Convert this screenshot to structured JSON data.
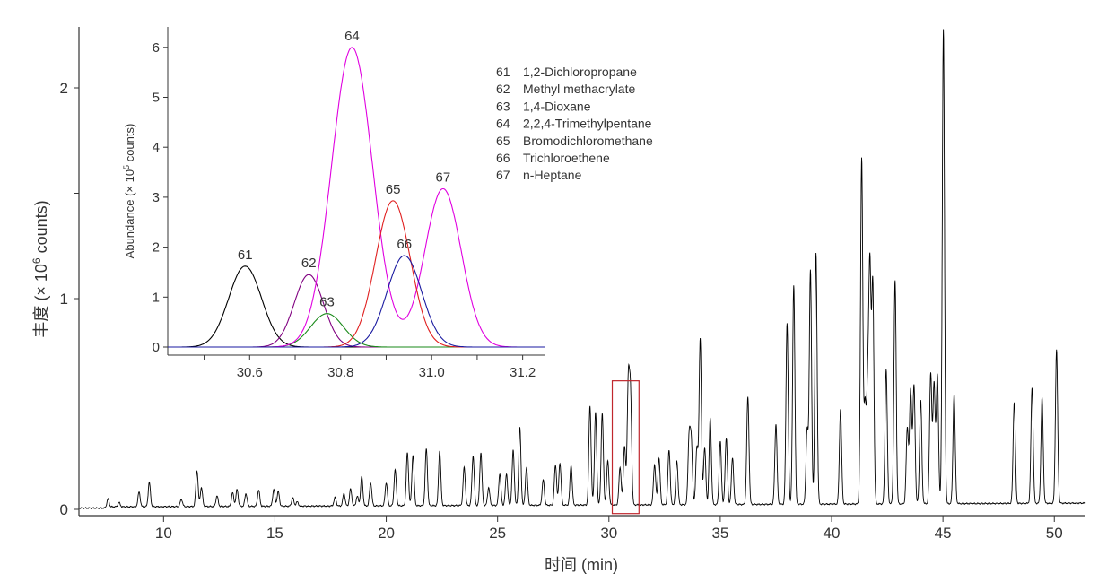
{
  "chart_data": [
    {
      "type": "line",
      "title": "",
      "xlabel": "时间 (min)",
      "ylabel": "丰度 (× 10⁶ counts)",
      "ylabel_parts": {
        "pre": "丰度 (× 10",
        "sup": "6",
        "post": " counts)"
      },
      "xlim": [
        6.2,
        51.4
      ],
      "ylim": [
        0,
        2.3
      ],
      "xticks": [
        10,
        15,
        20,
        25,
        30,
        35,
        40,
        45,
        50
      ],
      "xtick_labels": [
        "10",
        "15",
        "20",
        "25",
        "30",
        "35",
        "40",
        "45",
        "50"
      ],
      "yticks": [
        0,
        0.5,
        1,
        1.5,
        2
      ],
      "ytick_labels": [
        "0",
        "",
        "1",
        "",
        "2"
      ],
      "grid": false,
      "series_color": "#000000",
      "baseline_start_min": 7.5,
      "peak_width_sigma_min": 0.05,
      "peaks": [
        [
          7.5,
          0.04
        ],
        [
          8.0,
          0.02
        ],
        [
          8.9,
          0.07
        ],
        [
          9.36,
          0.115
        ],
        [
          10.8,
          0.035
        ],
        [
          11.5,
          0.17
        ],
        [
          11.7,
          0.09
        ],
        [
          12.4,
          0.05
        ],
        [
          13.1,
          0.065
        ],
        [
          13.3,
          0.08
        ],
        [
          13.7,
          0.06
        ],
        [
          14.27,
          0.077
        ],
        [
          14.95,
          0.08
        ],
        [
          15.15,
          0.07
        ],
        [
          15.8,
          0.04
        ],
        [
          16.0,
          0.02
        ],
        [
          17.7,
          0.04
        ],
        [
          18.1,
          0.06
        ],
        [
          18.4,
          0.08
        ],
        [
          18.7,
          0.045
        ],
        [
          18.9,
          0.14
        ],
        [
          19.3,
          0.11
        ],
        [
          20.0,
          0.11
        ],
        [
          20.4,
          0.17
        ],
        [
          20.95,
          0.25
        ],
        [
          21.2,
          0.24
        ],
        [
          21.8,
          0.27
        ],
        [
          22.4,
          0.26
        ],
        [
          23.5,
          0.18
        ],
        [
          23.9,
          0.235
        ],
        [
          24.25,
          0.25
        ],
        [
          24.6,
          0.085
        ],
        [
          25.1,
          0.15
        ],
        [
          25.4,
          0.15
        ],
        [
          25.7,
          0.26
        ],
        [
          26.0,
          0.37
        ],
        [
          26.3,
          0.18
        ],
        [
          27.05,
          0.12
        ],
        [
          27.6,
          0.19
        ],
        [
          27.8,
          0.2
        ],
        [
          28.3,
          0.19
        ],
        [
          29.15,
          0.47
        ],
        [
          29.4,
          0.44
        ],
        [
          29.7,
          0.435
        ],
        [
          29.95,
          0.21
        ],
        [
          30.5,
          0.18
        ],
        [
          30.7,
          0.28
        ],
        [
          30.87,
          0.57
        ],
        [
          30.97,
          0.5
        ],
        [
          32.05,
          0.19
        ],
        [
          32.25,
          0.22
        ],
        [
          32.7,
          0.26
        ],
        [
          33.05,
          0.21
        ],
        [
          33.6,
          0.315
        ],
        [
          33.7,
          0.29
        ],
        [
          33.95,
          0.27
        ],
        [
          34.1,
          0.79
        ],
        [
          34.3,
          0.27
        ],
        [
          34.55,
          0.41
        ],
        [
          35.0,
          0.3
        ],
        [
          35.27,
          0.32
        ],
        [
          35.55,
          0.22
        ],
        [
          36.24,
          0.51
        ],
        [
          37.5,
          0.38
        ],
        [
          38.0,
          0.86
        ],
        [
          38.3,
          1.04
        ],
        [
          38.9,
          0.35
        ],
        [
          39.05,
          1.11
        ],
        [
          39.3,
          1.19
        ],
        [
          40.4,
          0.45
        ],
        [
          41.35,
          1.64
        ],
        [
          41.5,
          0.46
        ],
        [
          41.62,
          0.5
        ],
        [
          41.72,
          1.09
        ],
        [
          41.85,
          1.04
        ],
        [
          42.45,
          0.64
        ],
        [
          42.85,
          1.06
        ],
        [
          43.4,
          0.36
        ],
        [
          43.55,
          0.54
        ],
        [
          43.7,
          0.56
        ],
        [
          44.0,
          0.49
        ],
        [
          44.45,
          0.62
        ],
        [
          44.6,
          0.57
        ],
        [
          44.75,
          0.61
        ],
        [
          45.02,
          2.25
        ],
        [
          45.5,
          0.52
        ],
        [
          48.2,
          0.48
        ],
        [
          49.0,
          0.55
        ],
        [
          49.45,
          0.5
        ],
        [
          50.1,
          0.73
        ]
      ],
      "annotation": {
        "type": "rectangle",
        "label": "zoom region",
        "x_range": [
          30.15,
          31.35
        ],
        "y_range": [
          -0.02,
          0.61
        ],
        "color": "#c0272d"
      }
    },
    {
      "type": "line",
      "title": "",
      "xlabel": "",
      "ylabel": "Abundance (× 10⁵ counts)",
      "ylabel_parts": {
        "pre": "Abundance (× 10",
        "sup": "5",
        "post": " counts)"
      },
      "xlim": [
        30.42,
        31.25
      ],
      "ylim": [
        0,
        6.45
      ],
      "xticks": [
        30.5,
        30.6,
        30.7,
        30.8,
        30.9,
        31.0,
        31.1,
        31.2
      ],
      "xtick_labels": [
        "",
        "30.6",
        "",
        "30.8",
        "",
        "31.0",
        "",
        "31.2"
      ],
      "yticks": [
        0,
        1,
        2,
        3,
        4,
        5,
        6
      ],
      "ytick_labels": [
        "0",
        "1",
        "2",
        "3",
        "4",
        "5",
        "6"
      ],
      "grid": false,
      "series": [
        {
          "id": "61",
          "name": "1,2-Dichloropropane",
          "center": 30.59,
          "height": 1.62,
          "sigma": 0.036,
          "color": "#000000",
          "curve": "a"
        },
        {
          "id": "62",
          "name": "Methyl methacrylate",
          "center": 30.73,
          "height": 1.45,
          "sigma": 0.032,
          "color": "#800080",
          "curve": "b"
        },
        {
          "id": "63",
          "name": "1,4-Dioxane",
          "center": 30.77,
          "height": 0.67,
          "sigma": 0.036,
          "color": "#1a8a1a",
          "curve": "c"
        },
        {
          "id": "64",
          "name": "2,2,4-Trimethylpentane",
          "center": 30.825,
          "height": 6.0,
          "sigma": 0.045,
          "color": "#e000e0",
          "curve": "m"
        },
        {
          "id": "65",
          "name": "Bromodichloromethane",
          "center": 30.915,
          "height": 2.93,
          "sigma": 0.038,
          "color": "#e02020",
          "curve": "d"
        },
        {
          "id": "66",
          "name": "Trichloroethene",
          "center": 30.94,
          "height": 1.83,
          "sigma": 0.038,
          "color": "#1a1aa0",
          "curve": "e"
        },
        {
          "id": "67",
          "name": "n-Heptane",
          "center": 31.025,
          "height": 3.17,
          "sigma": 0.04,
          "color": "#e000e0",
          "curve": "m"
        }
      ],
      "legend_placement": "top-right"
    }
  ]
}
